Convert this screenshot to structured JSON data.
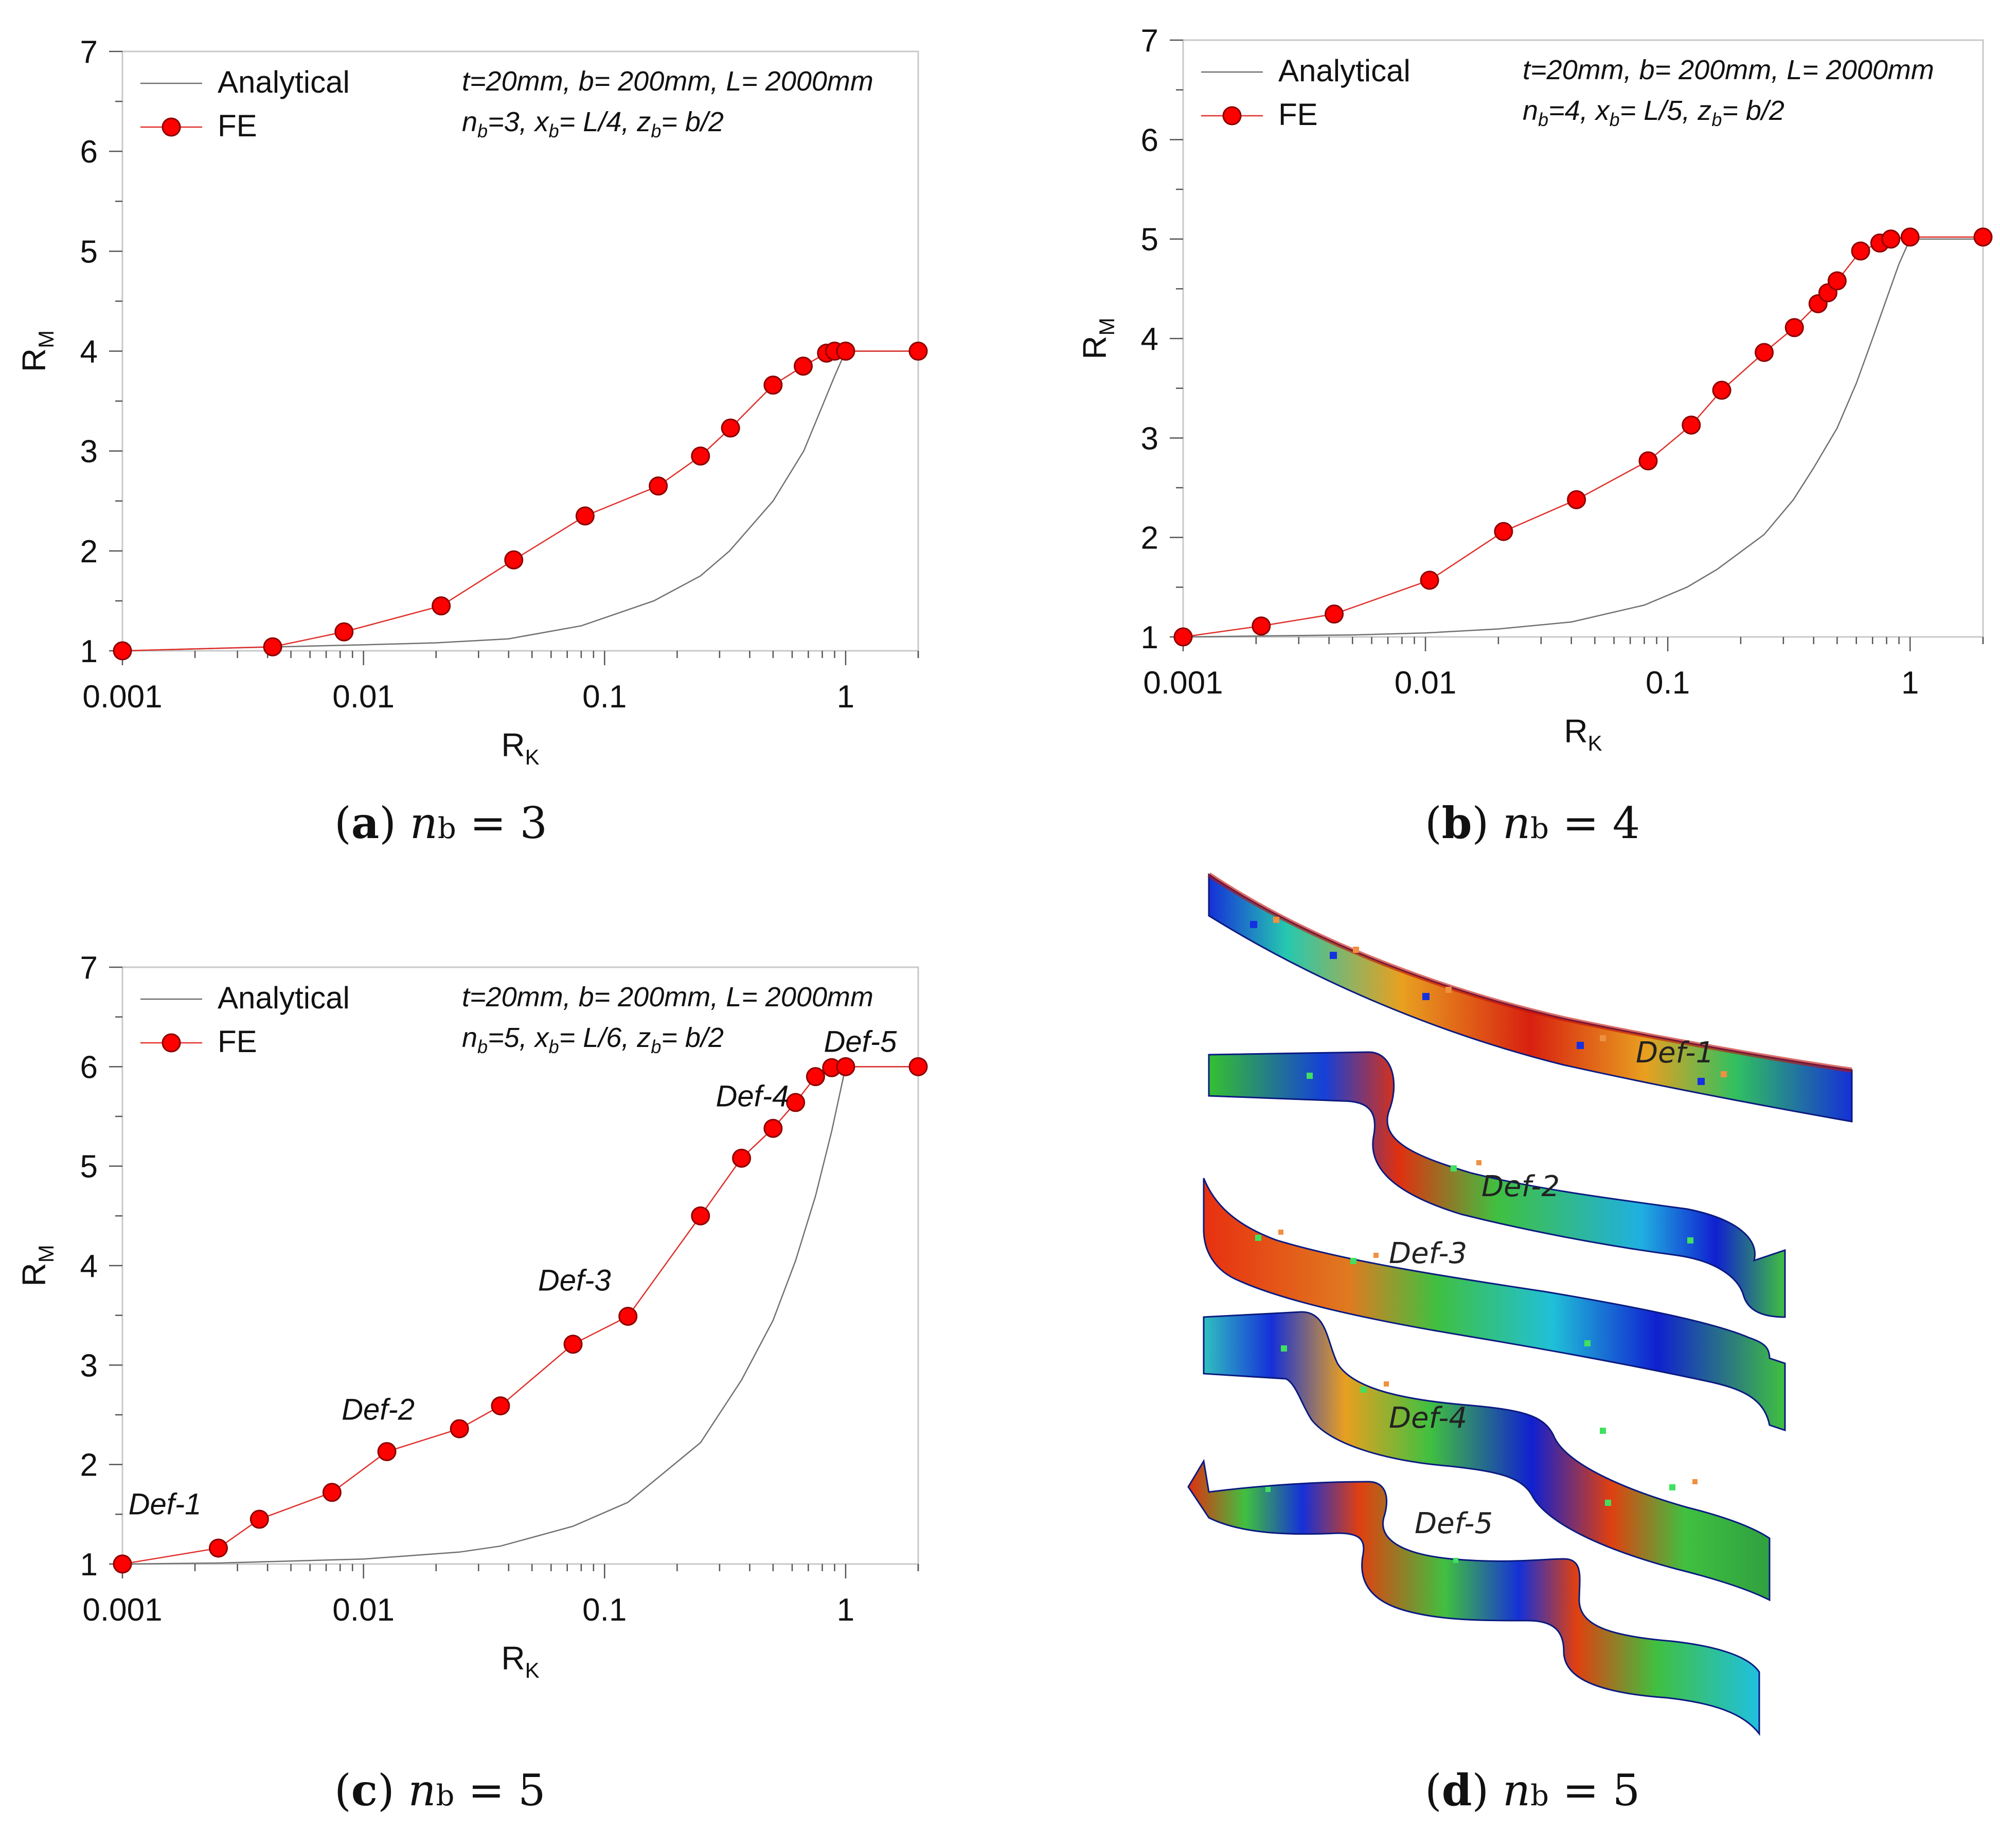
{
  "colors": {
    "analytical": "#707070",
    "fe_line": "#e0302b",
    "fe_marker_fill": "#ff0000",
    "fe_marker_edge": "#8a0000",
    "frame": "#c8c8c8",
    "text": "#111111"
  },
  "chart_data": [
    {
      "id": "a",
      "type": "line",
      "xscale": "log",
      "xlim": [
        0.001,
        2
      ],
      "ylim": [
        1,
        7
      ],
      "xlabel": "R",
      "xlabel_sub": "K",
      "ylabel": "R",
      "ylabel_sub": "M",
      "xticks": [
        {
          "v": 0.001,
          "label": "0.001"
        },
        {
          "v": 0.01,
          "label": "0.01"
        },
        {
          "v": 0.1,
          "label": "0.1"
        },
        {
          "v": 1,
          "label": "1"
        }
      ],
      "yticks": [
        {
          "v": 1,
          "label": "1"
        },
        {
          "v": 2,
          "label": "2"
        },
        {
          "v": 3,
          "label": "3"
        },
        {
          "v": 4,
          "label": "4"
        },
        {
          "v": 5,
          "label": "5"
        },
        {
          "v": 6,
          "label": "6"
        },
        {
          "v": 7,
          "label": "7"
        }
      ],
      "legend": [
        "Analytical",
        "FE"
      ],
      "params_line1": "t=20mm, b= 200mm, L= 2000mm",
      "params_line2": {
        "n": "n",
        "n_sub": "b",
        "rest1": "=3, x",
        "x_sub": "b",
        "rest2": "= L/4, z",
        "z_sub": "b",
        "rest3": "= b/2"
      },
      "series": [
        {
          "name": "Analytical",
          "x": [
            0.001,
            0.003,
            0.01,
            0.02,
            0.04,
            0.08,
            0.16,
            0.25,
            0.33,
            0.5,
            0.67,
            0.8,
            0.9,
            1.0,
            2.0
          ],
          "y": [
            1.0,
            1.03,
            1.06,
            1.08,
            1.12,
            1.25,
            1.5,
            1.75,
            2.0,
            2.5,
            3.0,
            3.45,
            3.75,
            4.0,
            4.0
          ]
        },
        {
          "name": "FE",
          "x": [
            0.001,
            0.0042,
            0.0083,
            0.021,
            0.042,
            0.083,
            0.167,
            0.25,
            0.333,
            0.5,
            0.667,
            0.833,
            0.9,
            1.0,
            2.0
          ],
          "y": [
            1.0,
            1.04,
            1.19,
            1.45,
            1.91,
            2.35,
            2.65,
            2.95,
            3.23,
            3.66,
            3.85,
            3.98,
            4.0,
            4.0,
            4.0
          ]
        }
      ],
      "annotations": []
    },
    {
      "id": "b",
      "type": "line",
      "xscale": "log",
      "xlim": [
        0.001,
        2
      ],
      "ylim": [
        1,
        7
      ],
      "xlabel": "R",
      "xlabel_sub": "K",
      "ylabel": "R",
      "ylabel_sub": "M",
      "xticks": [
        {
          "v": 0.001,
          "label": "0.001"
        },
        {
          "v": 0.01,
          "label": "0.01"
        },
        {
          "v": 0.1,
          "label": "0.1"
        },
        {
          "v": 1,
          "label": "1"
        }
      ],
      "yticks": [
        {
          "v": 1,
          "label": "1"
        },
        {
          "v": 2,
          "label": "2"
        },
        {
          "v": 3,
          "label": "3"
        },
        {
          "v": 4,
          "label": "4"
        },
        {
          "v": 5,
          "label": "5"
        },
        {
          "v": 6,
          "label": "6"
        },
        {
          "v": 7,
          "label": "7"
        }
      ],
      "legend": [
        "Analytical",
        "FE"
      ],
      "params_line1": "t=20mm, b= 200mm, L= 2000mm",
      "params_line2": {
        "n": "n",
        "n_sub": "b",
        "rest1": "=4, x",
        "x_sub": "b",
        "rest2": "= L/5, z",
        "z_sub": "b",
        "rest3": "= b/2"
      },
      "series": [
        {
          "name": "Analytical",
          "x": [
            0.001,
            0.005,
            0.01,
            0.02,
            0.04,
            0.08,
            0.12,
            0.16,
            0.25,
            0.33,
            0.4,
            0.5,
            0.6,
            0.7,
            0.8,
            0.9,
            1.0,
            2.0
          ],
          "y": [
            1.0,
            1.02,
            1.04,
            1.08,
            1.15,
            1.32,
            1.5,
            1.68,
            2.03,
            2.38,
            2.7,
            3.1,
            3.55,
            4.0,
            4.4,
            4.75,
            5.0,
            5.0
          ]
        },
        {
          "name": "FE",
          "x": [
            0.001,
            0.0021,
            0.0042,
            0.0104,
            0.021,
            0.042,
            0.083,
            0.125,
            0.167,
            0.25,
            0.333,
            0.417,
            0.458,
            0.5,
            0.625,
            0.75,
            0.833,
            1.0,
            2.0
          ],
          "y": [
            1.0,
            1.11,
            1.23,
            1.57,
            2.06,
            2.38,
            2.77,
            3.13,
            3.48,
            3.86,
            4.11,
            4.35,
            4.46,
            4.58,
            4.88,
            4.96,
            5.0,
            5.02,
            5.02
          ]
        }
      ],
      "annotations": []
    },
    {
      "id": "c",
      "type": "line",
      "xscale": "log",
      "xlim": [
        0.001,
        2
      ],
      "ylim": [
        1,
        7
      ],
      "xlabel": "R",
      "xlabel_sub": "K",
      "ylabel": "R",
      "ylabel_sub": "M",
      "xticks": [
        {
          "v": 0.001,
          "label": "0.001"
        },
        {
          "v": 0.01,
          "label": "0.01"
        },
        {
          "v": 0.1,
          "label": "0.1"
        },
        {
          "v": 1,
          "label": "1"
        }
      ],
      "yticks": [
        {
          "v": 1,
          "label": "1"
        },
        {
          "v": 2,
          "label": "2"
        },
        {
          "v": 3,
          "label": "3"
        },
        {
          "v": 4,
          "label": "4"
        },
        {
          "v": 5,
          "label": "5"
        },
        {
          "v": 6,
          "label": "6"
        },
        {
          "v": 7,
          "label": "7"
        }
      ],
      "legend": [
        "Analytical",
        "FE"
      ],
      "params_line1": "t=20mm, b= 200mm, L= 2000mm",
      "params_line2": {
        "n": "n",
        "n_sub": "b",
        "rest1": "=5, x",
        "x_sub": "b",
        "rest2": "= L/6, z",
        "z_sub": "b",
        "rest3": "= b/2"
      },
      "series": [
        {
          "name": "Analytical",
          "x": [
            0.001,
            0.0025,
            0.005,
            0.01,
            0.025,
            0.037,
            0.074,
            0.125,
            0.25,
            0.37,
            0.5,
            0.62,
            0.75,
            0.875,
            1.0,
            2.0
          ],
          "y": [
            1.0,
            1.01,
            1.03,
            1.05,
            1.12,
            1.18,
            1.38,
            1.62,
            2.22,
            2.85,
            3.45,
            4.05,
            4.7,
            5.35,
            6.0,
            6.0
          ]
        },
        {
          "name": "FE",
          "x": [
            0.001,
            0.0025,
            0.0037,
            0.0074,
            0.0125,
            0.025,
            0.037,
            0.074,
            0.125,
            0.25,
            0.37,
            0.5,
            0.62,
            0.75,
            0.875,
            1.0,
            2.0
          ],
          "y": [
            1.0,
            1.16,
            1.45,
            1.72,
            2.13,
            2.36,
            2.59,
            3.21,
            3.49,
            4.5,
            5.08,
            5.38,
            5.64,
            5.9,
            5.99,
            6.0,
            6.0
          ]
        }
      ],
      "annotations": [
        {
          "label": "Def-1",
          "x": 0.0015,
          "y": 1.5
        },
        {
          "label": "Def-2",
          "x": 0.0115,
          "y": 2.45
        },
        {
          "label": "Def-3",
          "x": 0.075,
          "y": 3.75
        },
        {
          "label": "Def-4",
          "x": 0.41,
          "y": 5.6
        },
        {
          "label": "Def-5",
          "x": 1.15,
          "y": 6.15
        }
      ]
    }
  ],
  "captions": {
    "a": {
      "letter": "a",
      "n": "n",
      "sub": "b",
      "eq": " = 3"
    },
    "b": {
      "letter": "b",
      "n": "n",
      "sub": "b",
      "eq": " = 4"
    },
    "c": {
      "letter": "c",
      "n": "n",
      "sub": "b",
      "eq": " = 5"
    },
    "d": {
      "letter": "d",
      "n": "n",
      "sub": "b",
      "eq": " = 5"
    }
  },
  "panel_d": {
    "labels": [
      "Def-1",
      "Def-2",
      "Def-3",
      "Def-4",
      "Def-5"
    ]
  }
}
